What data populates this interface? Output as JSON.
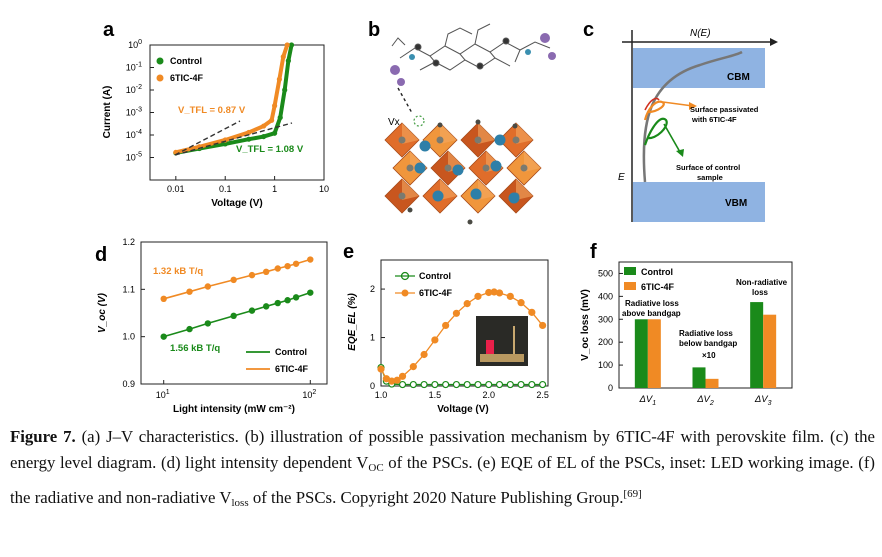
{
  "panels": {
    "a": {
      "letter": "a",
      "legend": [
        "Control",
        "6TIC-4F"
      ],
      "vtfl_orange": "V_TFL = 0.87 V",
      "vtfl_green": "V_TFL = 1.08 V",
      "colors": {
        "control": "#1a8a1a",
        "tic": "#f08a24"
      }
    },
    "b": {
      "letter": "b",
      "vx_label": "Vx"
    },
    "c": {
      "letter": "c",
      "ne_label": "N(E)",
      "cbm_label": "CBM",
      "vbm_label": "VBM",
      "e_label": "E",
      "orange_note": [
        "Surface passivated",
        "with 6TIC-4F"
      ],
      "green_note": [
        "Surface of control",
        "sample"
      ],
      "band_color": "#6a9ad8"
    },
    "d": {
      "letter": "d",
      "label_orange": "1.32 kB T/q",
      "label_green": "1.56 kB T/q",
      "legend": [
        "Control",
        "6TIC-4F"
      ]
    },
    "e": {
      "letter": "e",
      "legend": [
        "Control",
        "6TIC-4F"
      ]
    },
    "f": {
      "letter": "f",
      "legend": [
        "Control",
        "6TIC-4F"
      ],
      "note_radiative_above": [
        "Radiative loss",
        "above bandgap"
      ],
      "note_radiative_below": [
        "Radiative loss",
        "below bandgap",
        "×10"
      ],
      "note_nonradiative": [
        "Non-radiative",
        "loss"
      ]
    }
  },
  "chart_data": [
    {
      "panel": "a",
      "type": "line",
      "xlabel": "Voltage (V)",
      "ylabel": "Current (A)",
      "x_scale": "log",
      "y_scale": "log",
      "xlim": [
        0.003,
        10
      ],
      "ylim": [
        1e-06,
        1
      ],
      "x_ticks": [
        {
          "v": 0.01,
          "label": "0.01"
        },
        {
          "v": 0.1,
          "label": "0.1"
        },
        {
          "v": 1,
          "label": "1"
        },
        {
          "v": 10,
          "label": "10"
        }
      ],
      "y_ticks": [
        {
          "e": 0,
          "label": "10",
          "sup": "0"
        },
        {
          "e": -1,
          "label": "10",
          "sup": "-1"
        },
        {
          "e": -2,
          "label": "10",
          "sup": "-2"
        },
        {
          "e": -3,
          "label": "10",
          "sup": "-3"
        },
        {
          "e": -4,
          "label": "10",
          "sup": "-4"
        },
        {
          "e": -5,
          "label": "10",
          "sup": "-5"
        }
      ],
      "series": [
        {
          "name": "Control",
          "x": [
            0.01,
            0.03,
            0.1,
            0.3,
            0.6,
            1.0,
            1.3,
            1.6,
            1.9,
            2.2
          ],
          "y": [
            1.6e-05,
            2.5e-05,
            4e-05,
            6.5e-05,
            8.5e-05,
            0.00012,
            0.0006,
            0.01,
            0.2,
            1.0
          ]
        },
        {
          "name": "6TIC-4F",
          "x": [
            0.01,
            0.03,
            0.1,
            0.3,
            0.6,
            0.87,
            1.0,
            1.25,
            1.5,
            1.8
          ],
          "y": [
            1.7e-05,
            3e-05,
            6e-05,
            0.00013,
            0.00025,
            0.00045,
            0.002,
            0.03,
            0.3,
            1.0
          ]
        }
      ]
    },
    {
      "panel": "d",
      "type": "line",
      "xlabel": "Light intensity (mW cm⁻²)",
      "ylabel": "V_oc (V)",
      "x_scale": "log",
      "xlim": [
        7,
        130
      ],
      "ylim": [
        0.9,
        1.2
      ],
      "x_ticks": [
        {
          "e": 1,
          "label": "10",
          "sup": "1"
        },
        {
          "e": 2,
          "label": "10",
          "sup": "2"
        }
      ],
      "y_ticks": [
        0.9,
        1.0,
        1.1,
        1.2
      ],
      "series": [
        {
          "name": "Control",
          "x": [
            10,
            15,
            20,
            30,
            40,
            50,
            60,
            70,
            80,
            100
          ],
          "y": [
            1.0,
            1.016,
            1.028,
            1.044,
            1.055,
            1.064,
            1.071,
            1.077,
            1.083,
            1.093
          ]
        },
        {
          "name": "6TIC-4F",
          "x": [
            10,
            15,
            20,
            30,
            40,
            50,
            60,
            70,
            80,
            100
          ],
          "y": [
            1.08,
            1.095,
            1.106,
            1.12,
            1.13,
            1.137,
            1.144,
            1.149,
            1.154,
            1.163
          ]
        }
      ]
    },
    {
      "panel": "e",
      "type": "line",
      "xlabel": "Voltage (V)",
      "ylabel": "EQE_EL (%)",
      "xlim": [
        1.0,
        2.55
      ],
      "ylim": [
        0,
        2.6
      ],
      "x_ticks": [
        1.0,
        1.5,
        2.0,
        2.5
      ],
      "y_ticks": [
        0,
        1,
        2
      ],
      "series": [
        {
          "name": "Control",
          "x": [
            1.0,
            1.05,
            1.1,
            1.2,
            1.3,
            1.4,
            1.5,
            1.6,
            1.7,
            1.8,
            1.9,
            2.0,
            2.1,
            2.2,
            2.3,
            2.4,
            2.5
          ],
          "y": [
            0.38,
            0.1,
            0.04,
            0.03,
            0.03,
            0.03,
            0.03,
            0.03,
            0.03,
            0.03,
            0.03,
            0.03,
            0.03,
            0.03,
            0.03,
            0.03,
            0.03
          ]
        },
        {
          "name": "6TIC-4F",
          "x": [
            1.0,
            1.05,
            1.1,
            1.15,
            1.2,
            1.3,
            1.4,
            1.5,
            1.6,
            1.7,
            1.8,
            1.9,
            2.0,
            2.05,
            2.1,
            2.2,
            2.3,
            2.4,
            2.5
          ],
          "y": [
            0.35,
            0.15,
            0.1,
            0.12,
            0.2,
            0.4,
            0.65,
            0.95,
            1.25,
            1.5,
            1.7,
            1.85,
            1.93,
            1.94,
            1.92,
            1.85,
            1.72,
            1.52,
            1.25
          ]
        }
      ]
    },
    {
      "panel": "f",
      "type": "bar",
      "ylabel": "V_oc loss (mV)",
      "ylim": [
        0,
        550
      ],
      "y_ticks": [
        0,
        100,
        200,
        300,
        400,
        500
      ],
      "categories": [
        "ΔV1",
        "ΔV2",
        "ΔV3"
      ],
      "series": [
        {
          "name": "Control",
          "values": [
            300,
            90,
            375
          ]
        },
        {
          "name": "6TIC-4F",
          "values": [
            300,
            40,
            320
          ]
        }
      ]
    }
  ],
  "caption": {
    "label": "Figure 7.",
    "p1": " (a) J–V characteristics. (b) illustration of possible passivation mechanism by 6TIC-4F with perovskite film. (c) the energy level diagram. (d) light intensity dependent V",
    "voc_sub": "OC",
    "p2": " of the PSCs. (e) EQE of EL of the PSCs, inset: LED working image. (f) the radiative and non-radiative V",
    "loss_sub": "loss",
    "p3": " of the PSCs. Copyright 2020 Nature Publishing Group.",
    "ref": "[69]"
  }
}
